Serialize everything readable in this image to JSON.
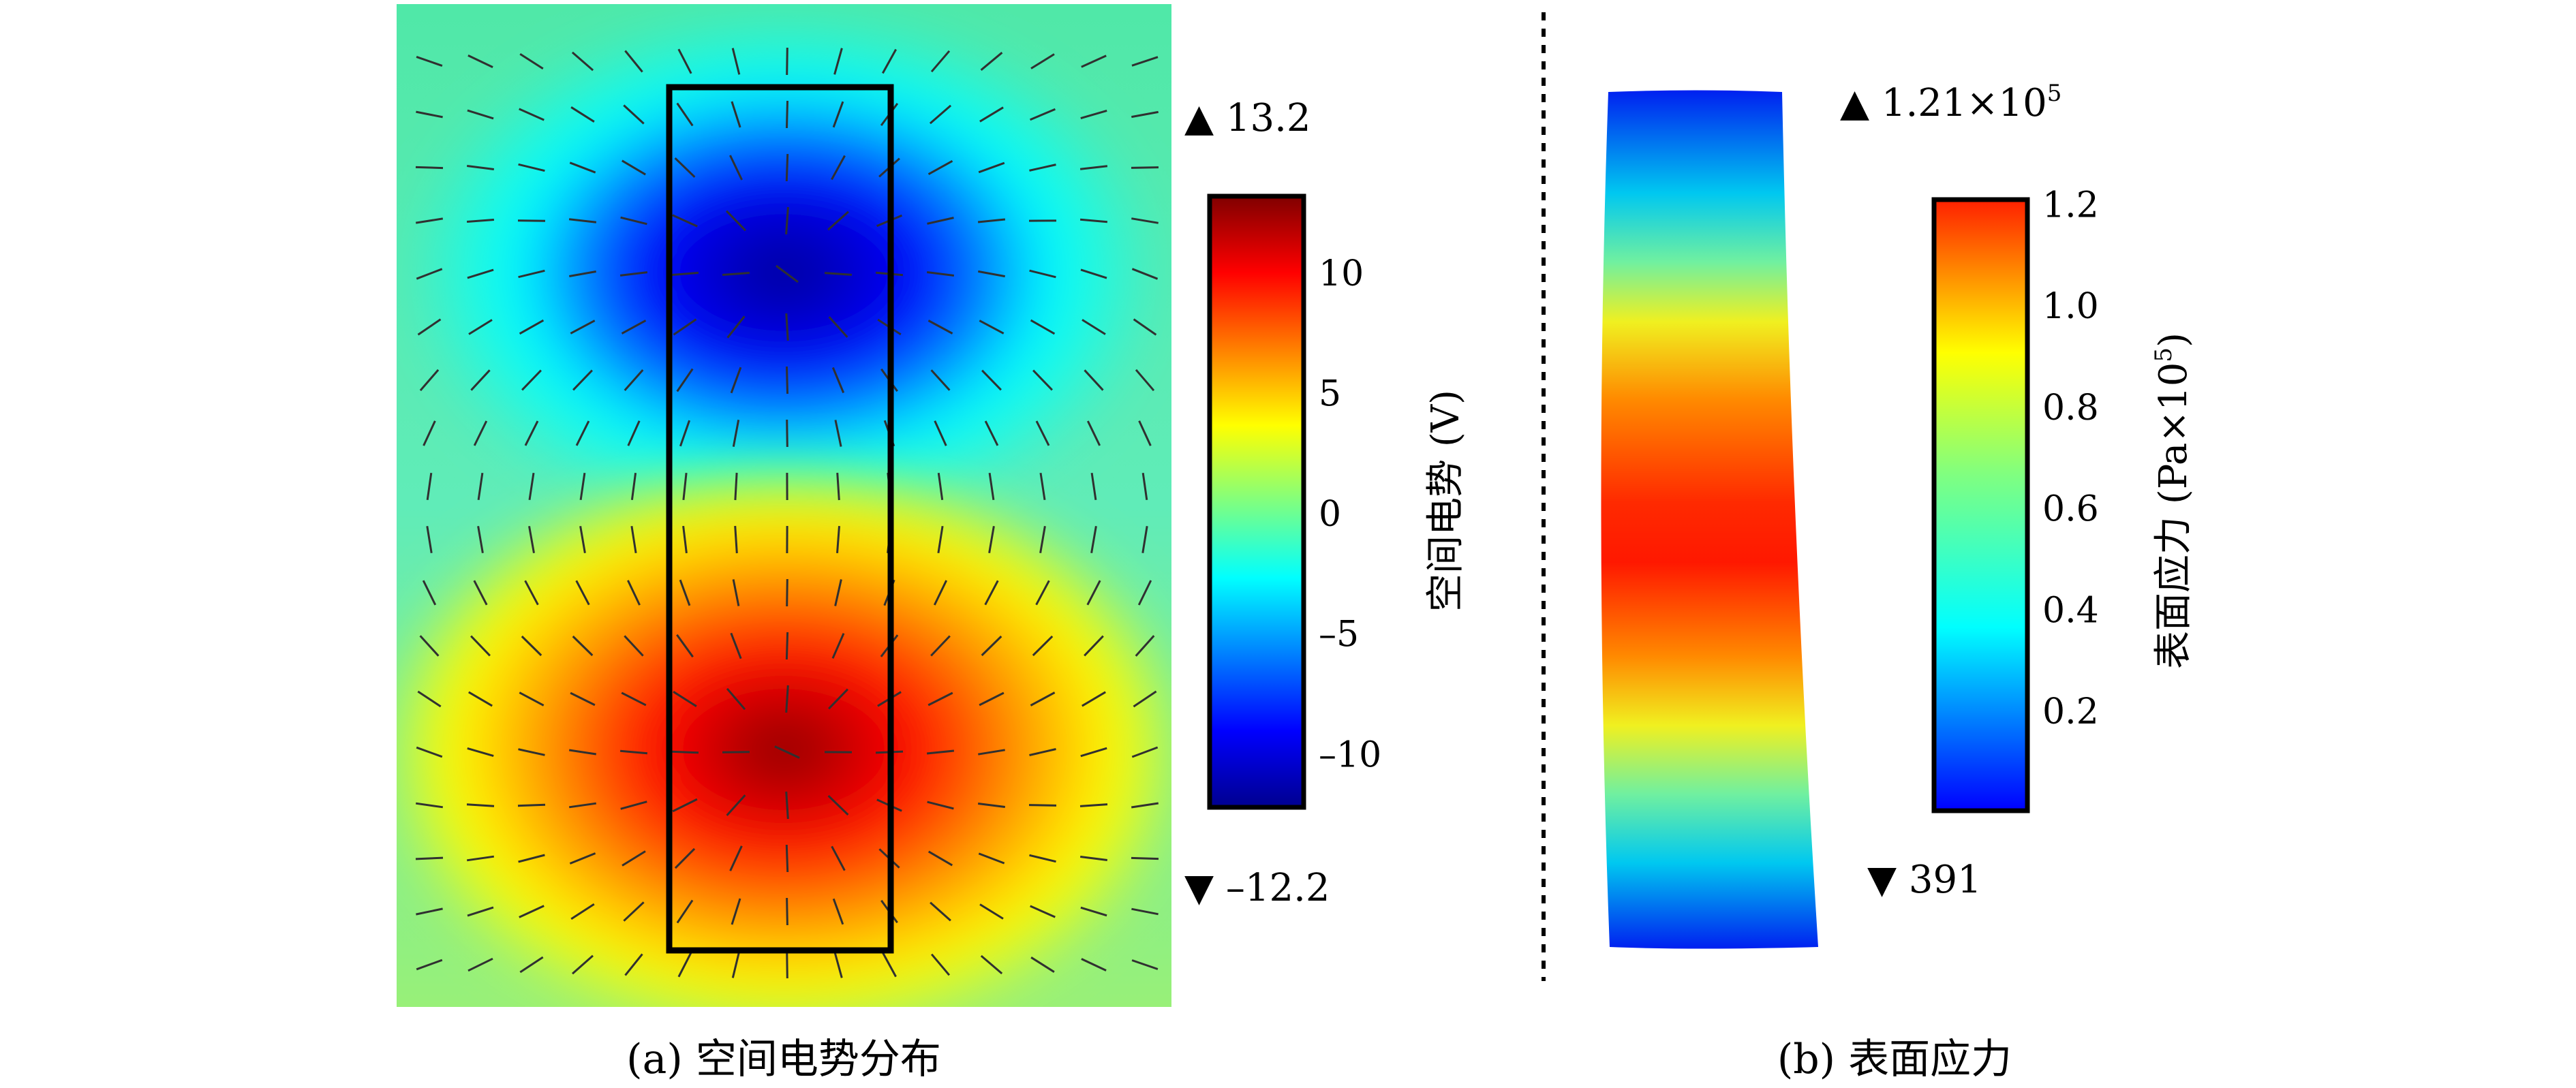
{
  "panel_a": {
    "caption": "(a) 空间电势分布",
    "max_label": "▲ 13.2",
    "min_label": "▼ –12.2",
    "colorbar_label": "空间电势 (V)",
    "ticks": [
      {
        "value": 10,
        "label": "10"
      },
      {
        "value": 5,
        "label": "5"
      },
      {
        "value": 0,
        "label": "0"
      },
      {
        "value": -5,
        "label": "–5"
      },
      {
        "value": -10,
        "label": "–10"
      }
    ],
    "range": [
      -12.2,
      13.2
    ]
  },
  "panel_b": {
    "caption": "(b) 表面应力",
    "max_label": "▲ 1.21×10",
    "max_exp": "5",
    "min_label": "▼ 391",
    "colorbar_label": "表面应力 (Pa×10",
    "colorbar_label_exp": "5",
    "colorbar_label_end": ")",
    "ticks": [
      {
        "value": 1.2,
        "label": "1.2"
      },
      {
        "value": 1.0,
        "label": "1.0"
      },
      {
        "value": 0.8,
        "label": "0.8"
      },
      {
        "value": 0.6,
        "label": "0.6"
      },
      {
        "value": 0.4,
        "label": "0.4"
      },
      {
        "value": 0.2,
        "label": "0.2"
      }
    ],
    "range": [
      0.0039,
      1.21
    ]
  },
  "colors": {
    "jet": [
      "#00008f",
      "#0000ff",
      "#00ffff",
      "#ffff00",
      "#ff0000",
      "#800000"
    ],
    "frame": "#000000"
  }
}
